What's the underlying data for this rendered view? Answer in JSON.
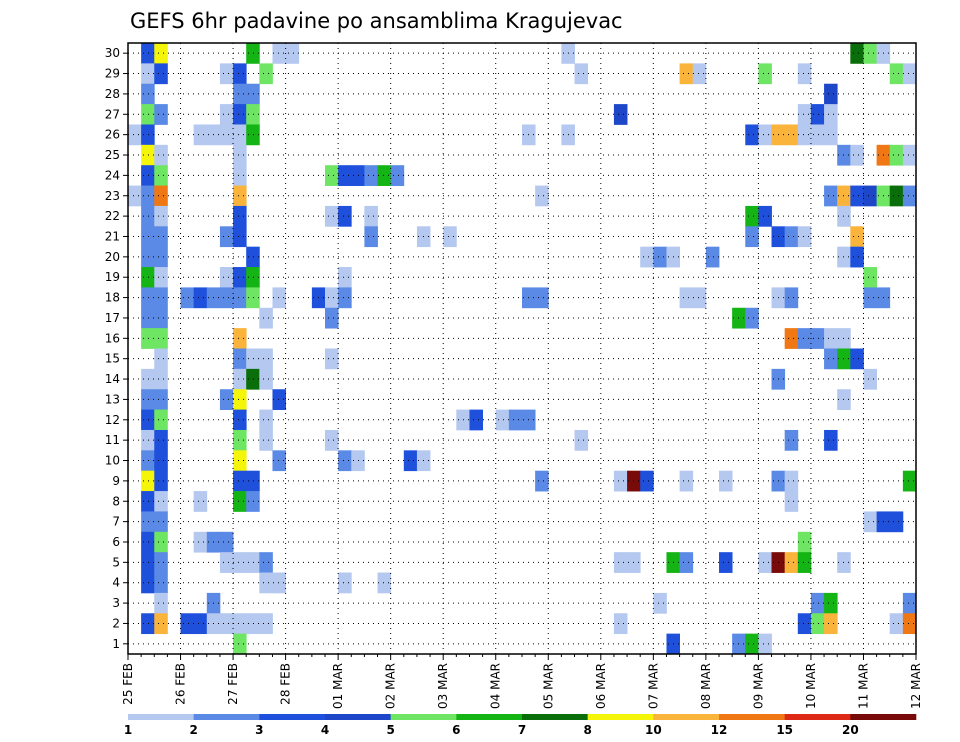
{
  "chart_data": {
    "type": "heatmap",
    "title": "GEFS 6hr padavine po ansamblima Kragujevac",
    "xlabel": "",
    "ylabel": "",
    "x_tick_labels": [
      "25 FEB",
      "26 FEB",
      "27 FEB",
      "28 FEB",
      "01 MAR",
      "02 MAR",
      "03 MAR",
      "04 MAR",
      "05 MAR",
      "06 MAR",
      "07 MAR",
      "08 MAR",
      "09 MAR",
      "10 MAR",
      "11 MAR",
      "12 MAR"
    ],
    "y_tick_labels": [
      "1",
      "2",
      "3",
      "4",
      "5",
      "6",
      "7",
      "8",
      "9",
      "10",
      "11",
      "12",
      "13",
      "14",
      "15",
      "16",
      "17",
      "18",
      "19",
      "20",
      "21",
      "22",
      "23",
      "24",
      "25",
      "26",
      "27",
      "28",
      "29",
      "30"
    ],
    "members": 30,
    "steps_per_day": 4,
    "time_steps": 60,
    "grid": true,
    "legend_position": "bottom",
    "colorbar": {
      "levels": [
        "1",
        "2",
        "3",
        "4",
        "5",
        "6",
        "7",
        "8",
        "10",
        "12",
        "15",
        "20"
      ],
      "colors": [
        "#b4c8f0",
        "#5a8ae6",
        "#1e50dc",
        "#1e46c8",
        "#6ee664",
        "#14b414",
        "#0a6e0a",
        "#f5f50a",
        "#fab43c",
        "#f07814",
        "#dc2814",
        "#780a0a"
      ]
    },
    "cells": [
      [
        30,
        1,
        3
      ],
      [
        30,
        2,
        8
      ],
      [
        30,
        9,
        6
      ],
      [
        30,
        11,
        1
      ],
      [
        30,
        12,
        1
      ],
      [
        30,
        33,
        1
      ],
      [
        30,
        55,
        7
      ],
      [
        30,
        56,
        5
      ],
      [
        30,
        57,
        1
      ],
      [
        29,
        1,
        1
      ],
      [
        29,
        2,
        3
      ],
      [
        29,
        7,
        1
      ],
      [
        29,
        8,
        3
      ],
      [
        29,
        10,
        5
      ],
      [
        29,
        34,
        1
      ],
      [
        29,
        42,
        10
      ],
      [
        29,
        43,
        11
      ],
      [
        29,
        48,
        5
      ],
      [
        29,
        51,
        1
      ],
      [
        29,
        58,
        5
      ],
      [
        29,
        59,
        1
      ],
      [
        28,
        1,
        2
      ],
      [
        28,
        8,
        2
      ],
      [
        28,
        9,
        2
      ],
      [
        28,
        53,
        4
      ],
      [
        27,
        1,
        5
      ],
      [
        27,
        2,
        2
      ],
      [
        27,
        7,
        1
      ],
      [
        27,
        8,
        3
      ],
      [
        27,
        9,
        5
      ],
      [
        27,
        37,
        4
      ],
      [
        27,
        51,
        1
      ],
      [
        27,
        52,
        3
      ],
      [
        27,
        53,
        1
      ],
      [
        26,
        0,
        1
      ],
      [
        26,
        1,
        3
      ],
      [
        26,
        5,
        1
      ],
      [
        26,
        6,
        1
      ],
      [
        26,
        7,
        1
      ],
      [
        26,
        8,
        1
      ],
      [
        26,
        9,
        6
      ],
      [
        26,
        30,
        1
      ],
      [
        26,
        33,
        1
      ],
      [
        26,
        47,
        3
      ],
      [
        26,
        48,
        1
      ],
      [
        26,
        49,
        10
      ],
      [
        26,
        50,
        10
      ],
      [
        26,
        51,
        1
      ],
      [
        26,
        52,
        1
      ],
      [
        26,
        53,
        1
      ],
      [
        25,
        1,
        8
      ],
      [
        25,
        2,
        11
      ],
      [
        25,
        8,
        1
      ],
      [
        25,
        54,
        2
      ],
      [
        25,
        55,
        1
      ],
      [
        25,
        57,
        12
      ],
      [
        25,
        58,
        5
      ],
      [
        25,
        59,
        1
      ],
      [
        24,
        1,
        3
      ],
      [
        24,
        2,
        5
      ],
      [
        24,
        8,
        1
      ],
      [
        24,
        15,
        5
      ],
      [
        24,
        16,
        3
      ],
      [
        24,
        17,
        3
      ],
      [
        24,
        18,
        2
      ],
      [
        24,
        19,
        6
      ],
      [
        24,
        20,
        2
      ],
      [
        23,
        0,
        1
      ],
      [
        23,
        1,
        2
      ],
      [
        23,
        2,
        12
      ],
      [
        23,
        8,
        10
      ],
      [
        23,
        31,
        1
      ],
      [
        23,
        53,
        2
      ],
      [
        23,
        54,
        10
      ],
      [
        23,
        55,
        3
      ],
      [
        23,
        56,
        4
      ],
      [
        23,
        57,
        5
      ],
      [
        23,
        58,
        7
      ],
      [
        23,
        59,
        2
      ],
      [
        22,
        1,
        2
      ],
      [
        22,
        2,
        1
      ],
      [
        22,
        8,
        3
      ],
      [
        22,
        15,
        1
      ],
      [
        22,
        16,
        3
      ],
      [
        22,
        18,
        1
      ],
      [
        22,
        47,
        6
      ],
      [
        22,
        48,
        3
      ],
      [
        22,
        54,
        1
      ],
      [
        21,
        1,
        2
      ],
      [
        21,
        2,
        2
      ],
      [
        21,
        7,
        2
      ],
      [
        21,
        8,
        3
      ],
      [
        21,
        18,
        2
      ],
      [
        21,
        22,
        1
      ],
      [
        21,
        24,
        1
      ],
      [
        21,
        47,
        2
      ],
      [
        21,
        49,
        3
      ],
      [
        21,
        50,
        2
      ],
      [
        21,
        51,
        1
      ],
      [
        21,
        55,
        10
      ],
      [
        20,
        1,
        2
      ],
      [
        20,
        2,
        2
      ],
      [
        20,
        9,
        3
      ],
      [
        20,
        39,
        1
      ],
      [
        20,
        40,
        2
      ],
      [
        20,
        41,
        1
      ],
      [
        20,
        44,
        2
      ],
      [
        20,
        54,
        1
      ],
      [
        20,
        55,
        3
      ],
      [
        19,
        1,
        6
      ],
      [
        19,
        2,
        1
      ],
      [
        19,
        7,
        1
      ],
      [
        19,
        8,
        3
      ],
      [
        19,
        9,
        6
      ],
      [
        19,
        16,
        1
      ],
      [
        19,
        56,
        5
      ],
      [
        18,
        1,
        2
      ],
      [
        18,
        2,
        2
      ],
      [
        18,
        4,
        2
      ],
      [
        18,
        5,
        3
      ],
      [
        18,
        6,
        2
      ],
      [
        18,
        7,
        2
      ],
      [
        18,
        8,
        2
      ],
      [
        18,
        9,
        5
      ],
      [
        18,
        11,
        1
      ],
      [
        18,
        14,
        3
      ],
      [
        18,
        15,
        1
      ],
      [
        18,
        16,
        2
      ],
      [
        18,
        30,
        2
      ],
      [
        18,
        31,
        2
      ],
      [
        18,
        42,
        1
      ],
      [
        18,
        43,
        1
      ],
      [
        18,
        49,
        1
      ],
      [
        18,
        50,
        2
      ],
      [
        18,
        56,
        2
      ],
      [
        18,
        57,
        2
      ],
      [
        17,
        1,
        2
      ],
      [
        17,
        2,
        2
      ],
      [
        17,
        10,
        1
      ],
      [
        17,
        15,
        2
      ],
      [
        17,
        46,
        6
      ],
      [
        17,
        47,
        2
      ],
      [
        16,
        1,
        5
      ],
      [
        16,
        2,
        5
      ],
      [
        16,
        8,
        10
      ],
      [
        16,
        50,
        12
      ],
      [
        16,
        51,
        2
      ],
      [
        16,
        52,
        2
      ],
      [
        16,
        53,
        1
      ],
      [
        16,
        54,
        1
      ],
      [
        15,
        2,
        1
      ],
      [
        15,
        8,
        2
      ],
      [
        15,
        9,
        1
      ],
      [
        15,
        10,
        1
      ],
      [
        15,
        15,
        1
      ],
      [
        15,
        53,
        2
      ],
      [
        15,
        54,
        6
      ],
      [
        15,
        55,
        3
      ],
      [
        14,
        1,
        1
      ],
      [
        14,
        2,
        1
      ],
      [
        14,
        8,
        1
      ],
      [
        14,
        9,
        7
      ],
      [
        14,
        10,
        1
      ],
      [
        14,
        49,
        2
      ],
      [
        14,
        56,
        1
      ],
      [
        13,
        1,
        2
      ],
      [
        13,
        2,
        2
      ],
      [
        13,
        7,
        2
      ],
      [
        13,
        8,
        8
      ],
      [
        13,
        11,
        3
      ],
      [
        13,
        54,
        1
      ],
      [
        12,
        1,
        3
      ],
      [
        12,
        2,
        5
      ],
      [
        12,
        8,
        3
      ],
      [
        12,
        10,
        1
      ],
      [
        12,
        25,
        1
      ],
      [
        12,
        26,
        3
      ],
      [
        12,
        28,
        1
      ],
      [
        12,
        29,
        2
      ],
      [
        12,
        30,
        2
      ],
      [
        11,
        1,
        1
      ],
      [
        11,
        2,
        3
      ],
      [
        11,
        8,
        5
      ],
      [
        11,
        10,
        1
      ],
      [
        11,
        15,
        1
      ],
      [
        11,
        34,
        1
      ],
      [
        11,
        50,
        2
      ],
      [
        11,
        53,
        3
      ],
      [
        10,
        1,
        2
      ],
      [
        10,
        2,
        3
      ],
      [
        10,
        8,
        8
      ],
      [
        10,
        11,
        2
      ],
      [
        10,
        16,
        2
      ],
      [
        10,
        17,
        1
      ],
      [
        10,
        21,
        3
      ],
      [
        10,
        22,
        1
      ],
      [
        9,
        1,
        8
      ],
      [
        9,
        2,
        3
      ],
      [
        9,
        8,
        3
      ],
      [
        9,
        9,
        3
      ],
      [
        9,
        31,
        2
      ],
      [
        9,
        37,
        1
      ],
      [
        9,
        38,
        20
      ],
      [
        9,
        39,
        3
      ],
      [
        9,
        42,
        1
      ],
      [
        9,
        45,
        1
      ],
      [
        9,
        49,
        2
      ],
      [
        9,
        50,
        1
      ],
      [
        9,
        59,
        6
      ],
      [
        8,
        1,
        3
      ],
      [
        8,
        2,
        1
      ],
      [
        8,
        5,
        1
      ],
      [
        8,
        8,
        6
      ],
      [
        8,
        9,
        2
      ],
      [
        8,
        50,
        1
      ],
      [
        7,
        1,
        2
      ],
      [
        7,
        2,
        2
      ],
      [
        7,
        56,
        1
      ],
      [
        7,
        57,
        3
      ],
      [
        7,
        58,
        3
      ],
      [
        6,
        1,
        3
      ],
      [
        6,
        2,
        5
      ],
      [
        6,
        5,
        1
      ],
      [
        6,
        6,
        2
      ],
      [
        6,
        7,
        2
      ],
      [
        6,
        51,
        5
      ],
      [
        5,
        1,
        3
      ],
      [
        5,
        2,
        2
      ],
      [
        5,
        7,
        1
      ],
      [
        5,
        8,
        1
      ],
      [
        5,
        9,
        1
      ],
      [
        5,
        10,
        2
      ],
      [
        5,
        37,
        1
      ],
      [
        5,
        38,
        1
      ],
      [
        5,
        41,
        6
      ],
      [
        5,
        42,
        2
      ],
      [
        5,
        45,
        3
      ],
      [
        5,
        48,
        11
      ],
      [
        5,
        49,
        20
      ],
      [
        5,
        50,
        10
      ],
      [
        5,
        51,
        6
      ],
      [
        5,
        54,
        1
      ],
      [
        4,
        1,
        3
      ],
      [
        4,
        2,
        2
      ],
      [
        4,
        10,
        1
      ],
      [
        4,
        11,
        1
      ],
      [
        4,
        16,
        1
      ],
      [
        4,
        19,
        1
      ],
      [
        3,
        2,
        1
      ],
      [
        3,
        6,
        2
      ],
      [
        3,
        40,
        1
      ],
      [
        3,
        52,
        2
      ],
      [
        3,
        53,
        6
      ],
      [
        3,
        59,
        2
      ],
      [
        2,
        1,
        3
      ],
      [
        2,
        2,
        10
      ],
      [
        2,
        4,
        3
      ],
      [
        2,
        5,
        3
      ],
      [
        2,
        6,
        1
      ],
      [
        2,
        7,
        1
      ],
      [
        2,
        8,
        1
      ],
      [
        2,
        9,
        1
      ],
      [
        2,
        10,
        1
      ],
      [
        2,
        37,
        1
      ],
      [
        2,
        51,
        3
      ],
      [
        2,
        52,
        5
      ],
      [
        2,
        53,
        10
      ],
      [
        2,
        58,
        1
      ],
      [
        2,
        59,
        12
      ],
      [
        1,
        8,
        5
      ],
      [
        1,
        41,
        3
      ],
      [
        1,
        46,
        2
      ],
      [
        1,
        47,
        6
      ],
      [
        1,
        48,
        1
      ]
    ]
  }
}
